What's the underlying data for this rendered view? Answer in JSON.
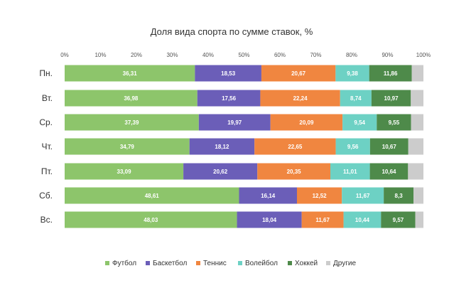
{
  "chart_data": {
    "type": "bar",
    "orientation": "horizontal",
    "stacked": true,
    "title": "Доля вида спорта по сумме ставок, %",
    "categories": [
      "Пн.",
      "Вт.",
      "Ср.",
      "Чт.",
      "Пт.",
      "Сб.",
      "Вс."
    ],
    "xlim": [
      0,
      100
    ],
    "xticks": [
      "0%",
      "10%",
      "20%",
      "30%",
      "40%",
      "50%",
      "60%",
      "70%",
      "80%",
      "90%",
      "100%"
    ],
    "grid": false,
    "legend_position": "bottom",
    "series": [
      {
        "name": "Футбол",
        "color": "#8dc56b",
        "values": [
          36.31,
          36.98,
          37.39,
          34.79,
          33.09,
          48.61,
          48.03
        ],
        "labels": [
          "36,31",
          "36,98",
          "37,39",
          "34,79",
          "33,09",
          "48,61",
          "48,03"
        ]
      },
      {
        "name": "Баскетбол",
        "color": "#6b5eb8",
        "values": [
          18.53,
          17.56,
          19.97,
          18.12,
          20.62,
          16.14,
          18.04
        ],
        "labels": [
          "18,53",
          "17,56",
          "19,97",
          "18,12",
          "20,62",
          "16,14",
          "18,04"
        ]
      },
      {
        "name": "Теннис",
        "color": "#f08640",
        "values": [
          20.67,
          22.24,
          20.09,
          22.65,
          20.35,
          12.52,
          11.67
        ],
        "labels": [
          "20,67",
          "22,24",
          "20,09",
          "22,65",
          "20,35",
          "12,52",
          "11,67"
        ]
      },
      {
        "name": "Волейбол",
        "color": "#6dd1c4",
        "values": [
          9.38,
          8.74,
          9.54,
          9.56,
          11.01,
          11.67,
          10.44
        ],
        "labels": [
          "9,38",
          "8,74",
          "9,54",
          "9,56",
          "11,01",
          "11,67",
          "10,44"
        ]
      },
      {
        "name": "Хоккей",
        "color": "#4e8a4a",
        "values": [
          11.86,
          10.97,
          9.55,
          10.67,
          10.64,
          8.3,
          9.57
        ],
        "labels": [
          "11,86",
          "10,97",
          "9,55",
          "10,67",
          "10,64",
          "8,3",
          "9,57"
        ]
      },
      {
        "name": "Другие",
        "color": "#cccccc",
        "values": [
          3.25,
          3.51,
          3.46,
          4.21,
          4.29,
          2.76,
          2.25
        ],
        "labels": [
          "",
          "",
          "",
          "",
          "",
          "",
          ""
        ]
      }
    ]
  }
}
